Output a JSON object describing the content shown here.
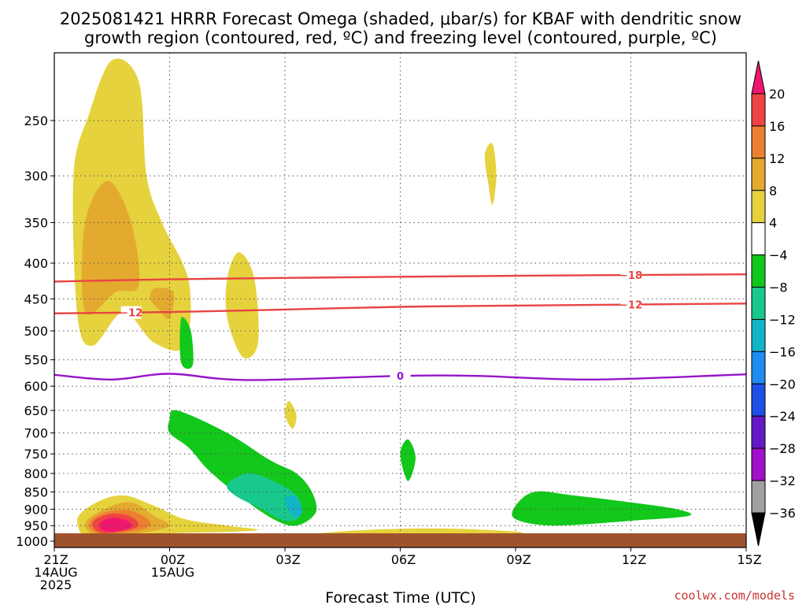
{
  "title_line1": "2025081421 HRRR Forecast Omega (shaded, μbar/s) for KBAF with dendritic snow",
  "title_line2": "growth region (contoured, red, ºC) and freezing level (contoured, purple, ºC)",
  "credit": "coolwx.com/models",
  "chart_data": {
    "type": "time-height-contour",
    "xlabel": "Forecast Time (UTC)",
    "x_ticks": [
      {
        "hour": 0,
        "lines": [
          "21Z",
          "14AUG",
          "2025"
        ]
      },
      {
        "hour": 3,
        "lines": [
          "00Z",
          "15AUG"
        ]
      },
      {
        "hour": 6,
        "lines": [
          "03Z"
        ]
      },
      {
        "hour": 9,
        "lines": [
          "06Z"
        ]
      },
      {
        "hour": 12,
        "lines": [
          "09Z"
        ]
      },
      {
        "hour": 15,
        "lines": [
          "12Z"
        ]
      },
      {
        "hour": 18,
        "lines": [
          "15Z"
        ]
      }
    ],
    "xlim": [
      0,
      18
    ],
    "y_axis": "pressure (hPa), log scale, inverted",
    "ylim": [
      1000,
      200
    ],
    "y_ticks": [
      250,
      300,
      350,
      400,
      450,
      500,
      550,
      600,
      650,
      700,
      750,
      800,
      850,
      900,
      950,
      1000
    ],
    "colorbar": {
      "labels": [
        "20",
        "16",
        "12",
        "8",
        "4",
        "−4",
        "−8",
        "−12",
        "−16",
        "−20",
        "−24",
        "−28",
        "−32",
        "−36"
      ],
      "colors": [
        "#f0166e",
        "#f04444",
        "#ec8030",
        "#e4aa30",
        "#e6d23c",
        "#ffffff",
        "#12c81a",
        "#18c88c",
        "#12b4c8",
        "#1e8cf0",
        "#1e50e6",
        "#6418c8",
        "#a010c8",
        "#a0a0a0"
      ]
    },
    "contours": [
      {
        "name": "dendritic -18",
        "label": "−18",
        "color": "#e84444",
        "values_hPa": [
          [
            0,
            425
          ],
          [
            3,
            422
          ],
          [
            6,
            420
          ],
          [
            12,
            417
          ],
          [
            18,
            415
          ]
        ]
      },
      {
        "name": "dendritic -12",
        "label": "−12",
        "color": "#e84444",
        "values_hPa": [
          [
            0,
            472
          ],
          [
            3,
            470
          ],
          [
            6,
            466
          ],
          [
            9,
            462
          ],
          [
            12,
            460
          ],
          [
            18,
            457
          ]
        ]
      },
      {
        "name": "freezing level",
        "label": "0",
        "color": "#9614c8",
        "values_hPa": [
          [
            0,
            578
          ],
          [
            1.5,
            587
          ],
          [
            3,
            576
          ],
          [
            5,
            588
          ],
          [
            9,
            580
          ],
          [
            11,
            580
          ],
          [
            14,
            587
          ],
          [
            18,
            577
          ]
        ]
      }
    ],
    "omega_regions": [
      {
        "level": "4 to 8",
        "color": "#e6d23c",
        "points": [
          [
            0.6,
            475
          ],
          [
            0.5,
            300
          ],
          [
            0.9,
            245
          ],
          [
            1.5,
            205
          ],
          [
            2.2,
            220
          ],
          [
            2.4,
            300
          ],
          [
            2.8,
            350
          ],
          [
            3.5,
            425
          ],
          [
            3.4,
            525
          ],
          [
            2.6,
            520
          ],
          [
            1.8,
            470
          ],
          [
            1.0,
            525
          ]
        ]
      },
      {
        "level": "8 to 12",
        "color": "#e4aa30",
        "points": [
          [
            0.8,
            470
          ],
          [
            0.8,
            350
          ],
          [
            1.4,
            305
          ],
          [
            2.0,
            350
          ],
          [
            2.2,
            430
          ],
          [
            1.6,
            440
          ]
        ]
      },
      {
        "level": "8 to 12",
        "color": "#e4aa30",
        "points": [
          [
            2.5,
            450
          ],
          [
            2.6,
            435
          ],
          [
            3.1,
            440
          ],
          [
            3.0,
            480
          ],
          [
            2.7,
            465
          ]
        ]
      },
      {
        "level": "4 to 8",
        "color": "#e6d23c",
        "points": [
          [
            4.5,
            420
          ],
          [
            4.8,
            386
          ],
          [
            5.2,
            420
          ],
          [
            5.3,
            520
          ],
          [
            4.9,
            545
          ],
          [
            4.5,
            480
          ]
        ]
      },
      {
        "level": "4 to 8",
        "color": "#e6d23c",
        "points": [
          [
            6.0,
            660
          ],
          [
            6.1,
            630
          ],
          [
            6.3,
            660
          ],
          [
            6.2,
            690
          ]
        ]
      },
      {
        "level": "4 to 8",
        "color": "#e6d23c",
        "points": [
          [
            11.2,
            280
          ],
          [
            11.4,
            270
          ],
          [
            11.5,
            300
          ],
          [
            11.4,
            330
          ],
          [
            11.3,
            310
          ]
        ]
      },
      {
        "level": "4 to 8",
        "color": "#e6d23c",
        "points": [
          [
            0.6,
            930
          ],
          [
            1.1,
            880
          ],
          [
            1.8,
            860
          ],
          [
            2.6,
            890
          ],
          [
            3.4,
            930
          ],
          [
            4.5,
            950
          ],
          [
            5.3,
            963
          ],
          [
            4.5,
            970
          ],
          [
            3.0,
            975
          ],
          [
            1.8,
            990
          ],
          [
            0.9,
            1000
          ]
        ]
      },
      {
        "level": "8 to 12",
        "color": "#e4aa30",
        "points": [
          [
            0.8,
            945
          ],
          [
            1.3,
            900
          ],
          [
            2.0,
            880
          ],
          [
            2.6,
            920
          ],
          [
            3.0,
            950
          ],
          [
            2.4,
            970
          ],
          [
            1.2,
            985
          ]
        ]
      },
      {
        "level": "12 to 16",
        "color": "#ec8030",
        "points": [
          [
            0.9,
            945
          ],
          [
            1.3,
            910
          ],
          [
            2.0,
            905
          ],
          [
            2.5,
            940
          ],
          [
            2.2,
            965
          ],
          [
            1.2,
            975
          ]
        ]
      },
      {
        "level": "16 to 20",
        "color": "#f04444",
        "points": [
          [
            1.0,
            940
          ],
          [
            1.4,
            915
          ],
          [
            1.9,
            918
          ],
          [
            2.2,
            945
          ],
          [
            1.9,
            965
          ],
          [
            1.2,
            972
          ]
        ]
      },
      {
        "level": "> 20",
        "color": "#f0166e",
        "points": [
          [
            1.2,
            940
          ],
          [
            1.5,
            925
          ],
          [
            1.9,
            935
          ],
          [
            2.0,
            955
          ],
          [
            1.5,
            970
          ],
          [
            1.2,
            960
          ]
        ]
      },
      {
        "level": "4 to 8",
        "color": "#e6d23c",
        "points": [
          [
            6.5,
            980
          ],
          [
            7.5,
            968
          ],
          [
            9.0,
            960
          ],
          [
            10.5,
            960
          ],
          [
            12.2,
            972
          ],
          [
            11.0,
            985
          ],
          [
            8.5,
            988
          ],
          [
            6.6,
            985
          ]
        ]
      },
      {
        "level": "-8 to -4",
        "color": "#12c81a",
        "points": [
          [
            3.3,
            480
          ],
          [
            3.3,
            555
          ],
          [
            3.6,
            560
          ],
          [
            3.55,
            500
          ]
        ]
      },
      {
        "level": "-8 to -4",
        "color": "#12c81a",
        "points": [
          [
            3.0,
            670
          ],
          [
            3.2,
            650
          ],
          [
            4.5,
            700
          ],
          [
            5.6,
            765
          ],
          [
            6.3,
            800
          ],
          [
            6.7,
            850
          ],
          [
            6.8,
            910
          ],
          [
            6.3,
            950
          ],
          [
            5.7,
            930
          ],
          [
            4.8,
            860
          ],
          [
            4.0,
            790
          ],
          [
            3.5,
            735
          ],
          [
            3.0,
            700
          ]
        ]
      },
      {
        "level": "-12 to -8",
        "color": "#18c88c",
        "points": [
          [
            4.5,
            830
          ],
          [
            5.0,
            800
          ],
          [
            5.6,
            815
          ],
          [
            6.3,
            860
          ],
          [
            6.4,
            920
          ],
          [
            6.0,
            935
          ],
          [
            5.4,
            900
          ],
          [
            4.7,
            860
          ]
        ]
      },
      {
        "level": "-16 to -12",
        "color": "#12b4c8",
        "points": [
          [
            6.0,
            870
          ],
          [
            6.3,
            865
          ],
          [
            6.45,
            910
          ],
          [
            6.2,
            920
          ]
        ]
      },
      {
        "level": "-8 to -4",
        "color": "#12c81a",
        "points": [
          [
            9.0,
            750
          ],
          [
            9.2,
            715
          ],
          [
            9.4,
            760
          ],
          [
            9.2,
            820
          ]
        ]
      },
      {
        "level": "-8 to -4",
        "color": "#12c81a",
        "points": [
          [
            12.0,
            890
          ],
          [
            12.5,
            850
          ],
          [
            13.5,
            860
          ],
          [
            15.0,
            880
          ],
          [
            16.2,
            900
          ],
          [
            16.5,
            920
          ],
          [
            15.0,
            935
          ],
          [
            13.0,
            950
          ],
          [
            12.0,
            930
          ]
        ]
      }
    ],
    "terrain": {
      "color": "#a0522d",
      "from_hPa": 1000
    }
  }
}
